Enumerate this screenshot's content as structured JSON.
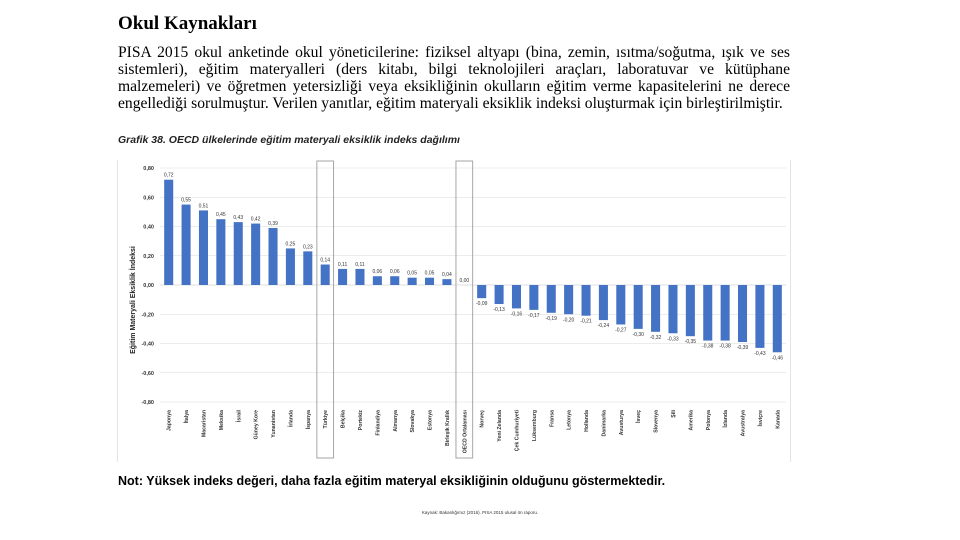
{
  "heading": "Okul Kaynakları",
  "paragraph": "PISA 2015 okul anketinde okul yöneticilerine: fiziksel altyapı (bina, zemin, ısıtma/soğutma, ışık ve ses sistemleri), eğitim materyalleri (ders kitabı, bilgi teknolojileri araçları, laboratuvar ve kütüphane malzemeleri) ve öğretmen yetersizliği veya eksikliğinin okulların eğitim verme kapasitelerini ne derece engellediği sorulmuştur. Verilen yanıtlar, eğitim materyali eksiklik indeksi oluşturmak için birleştirilmiştir.",
  "caption": "Grafik 38. OECD ülkelerinde eğitim materyali eksiklik indeks dağılımı",
  "note": "Not: Yüksek indeks değeri, daha fazla eğitim materyal eksikliğinin olduğunu göstermektedir.",
  "source": "Kaynak: Bakanlığımız (2016). PISA 2015 ulusal ön raporu.",
  "colors": {
    "bar": "#4472c4",
    "grid": "#d9d9d9",
    "highlight": "#a6a6a6"
  },
  "chart_data": {
    "type": "bar",
    "title": "",
    "ylabel": "Eğitim Materyali Eksiklik İndeksi",
    "xlabel": "",
    "ylim": [
      -0.8,
      0.8
    ],
    "yticks": [
      0.8,
      0.6,
      0.4,
      0.2,
      0.0,
      -0.2,
      -0.4,
      -0.6,
      -0.8
    ],
    "ytick_labels": [
      "0,80",
      "0,60",
      "0,40",
      "0,20",
      "0,00",
      "-0,20",
      "-0,40",
      "-0,60",
      "-0,80"
    ],
    "categories": [
      "Japonya",
      "İtalya",
      "Macaristan",
      "Meksika",
      "İsrail",
      "Güney Kore",
      "Yunanistan",
      "İrlanda",
      "İspanya",
      "Türkiye",
      "Belçika",
      "Portekiz",
      "Finlandiya",
      "Almanya",
      "Slovakya",
      "Estonya",
      "Birleşik Krallık",
      "OECD Ortalaması",
      "Norveç",
      "Yeni Zelanda",
      "Çek Cumhuriyeti",
      "Lüksemburg",
      "Fransa",
      "Letonya",
      "Hollanda",
      "Danimarka",
      "Avusturya",
      "İsveç",
      "Slovenya",
      "Şili",
      "Amerika",
      "Polonya",
      "İzlanda",
      "Avustralya",
      "İsviçre",
      "Kanada"
    ],
    "values": [
      0.72,
      0.55,
      0.51,
      0.45,
      0.43,
      0.42,
      0.39,
      0.25,
      0.23,
      0.14,
      0.11,
      0.11,
      0.06,
      0.06,
      0.05,
      0.05,
      0.04,
      0.0,
      -0.09,
      -0.13,
      -0.16,
      -0.17,
      -0.19,
      -0.2,
      -0.21,
      -0.24,
      -0.27,
      -0.3,
      -0.32,
      -0.33,
      -0.35,
      -0.38,
      -0.38,
      -0.39,
      -0.43,
      -0.46
    ],
    "value_labels": [
      "0,72",
      "0,55",
      "0,51",
      "0,45",
      "0,43",
      "0,42",
      "0,39",
      "0,25",
      "0,23",
      "0,14",
      "0,11",
      "0,11",
      "0,06",
      "0,06",
      "0,05",
      "0,05",
      "0,04",
      "0,00",
      "-0,09",
      "-0,13",
      "-0,16",
      "-0,17",
      "-0,19",
      "-0,20",
      "-0,21",
      "-0,24",
      "-0,27",
      "-0,30",
      "-0,32",
      "-0,33",
      "-0,35",
      "-0,38",
      "-0,38",
      "-0,39",
      "-0,43",
      "-0,46"
    ],
    "highlighted": [
      "Türkiye",
      "OECD Ortalaması"
    ]
  }
}
